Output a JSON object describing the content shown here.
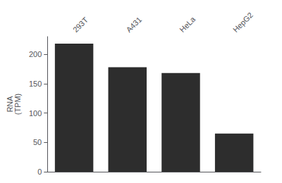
{
  "chart_data": {
    "type": "bar",
    "categories": [
      "293T",
      "A431",
      "HeLa",
      "HepG2"
    ],
    "values": [
      218,
      178,
      168,
      65
    ],
    "color": "#2d2d2d",
    "ylabel": "RNA\n(TPM)",
    "ylim": [
      0,
      230
    ],
    "yticks": [
      0,
      50,
      100,
      150,
      200
    ],
    "grid": false
  }
}
